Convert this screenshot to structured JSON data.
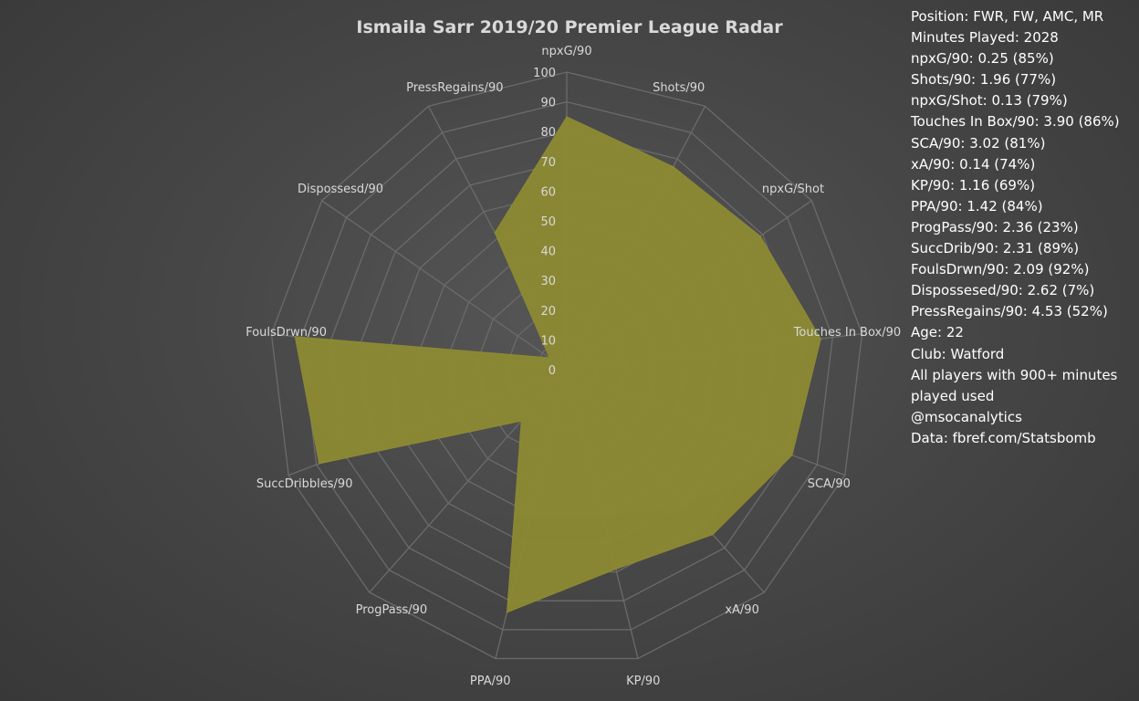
{
  "chart_data": {
    "type": "radar",
    "title": "Ismaila Sarr 2019/20 Premier League Radar",
    "axes": [
      "npxG/90",
      "Shots/90",
      "npxG/Shot",
      "Touches In Box/90",
      "SCA/90",
      "xA/90",
      "KP/90",
      "PPA/90",
      "ProgPass/90",
      "SuccDribbles/90",
      "FoulsDrwn/90",
      "Dispossesd/90",
      "PressRegains/90"
    ],
    "values": [
      85,
      77,
      79,
      86,
      81,
      74,
      69,
      84,
      23,
      89,
      92,
      7,
      52
    ],
    "rlim": [
      0,
      100
    ],
    "ticks": [
      "0",
      "10",
      "20",
      "30",
      "40",
      "50",
      "60",
      "70",
      "80",
      "90",
      "100"
    ],
    "fill_color": "#8c8a33",
    "grid_color": "#6b6b6b",
    "grid": true
  },
  "info": {
    "lines": [
      "Position: FWR, FW, AMC, MR",
      "Minutes Played: 2028",
      "npxG/90: 0.25 (85%)",
      "Shots/90: 1.96 (77%)",
      "npxG/Shot: 0.13 (79%)",
      "Touches In Box/90: 3.90 (86%)",
      "SCA/90: 3.02 (81%)",
      "xA/90: 0.14 (74%)",
      "KP/90: 1.16 (69%)",
      "PPA/90: 1.42 (84%)",
      "ProgPass/90: 2.36 (23%)",
      "SuccDrib/90: 2.31 (89%)",
      "FoulsDrwn/90: 2.09 (92%)",
      "Dispossesed/90: 2.62 (7%)",
      "PressRegains/90: 4.53 (52%)"
    ],
    "age": "Age: 22",
    "club": "Club: Watford",
    "note": "All players with 900+ minutes played used",
    "handle": "@msocanalytics",
    "source": "Data: fbref.com/Statsbomb"
  }
}
